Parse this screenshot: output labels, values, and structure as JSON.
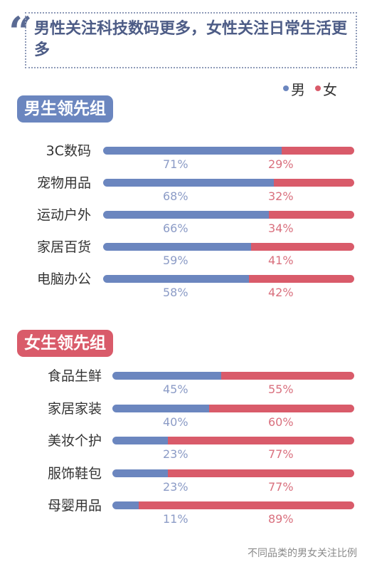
{
  "title": "男性关注科技数码更多，女性关注日常生活更多",
  "legend": [
    {
      "label": "男",
      "color": "#6b86bf"
    },
    {
      "label": "女",
      "color": "#d95b6a"
    }
  ],
  "colors": {
    "male": "#6b86bf",
    "female": "#d95b6a",
    "male_text": "#8b9bc6",
    "female_text": "#d9707e"
  },
  "groups": [
    {
      "label": "男生领先组",
      "color": "#6b86bf"
    },
    {
      "label": "女生领先组",
      "color": "#d95b6a"
    }
  ],
  "chart_data": {
    "type": "bar",
    "stacked": true,
    "orientation": "horizontal",
    "categories": [
      "3C数码",
      "宠物用品",
      "运动户外",
      "家居百货",
      "电脑办公",
      "食品生鲜",
      "家居家装",
      "美妆个护",
      "服饰鞋包",
      "母婴用品"
    ],
    "series": [
      {
        "name": "男",
        "values": [
          71,
          68,
          66,
          59,
          58,
          45,
          40,
          23,
          23,
          11
        ],
        "labels": [
          "71%",
          "68%",
          "66%",
          "59%",
          "58%",
          "45%",
          "40%",
          "23%",
          "23%",
          "11%"
        ]
      },
      {
        "name": "女",
        "values": [
          29,
          32,
          34,
          41,
          42,
          55,
          60,
          77,
          77,
          89
        ],
        "labels": [
          "29%",
          "32%",
          "34%",
          "41%",
          "42%",
          "55%",
          "60%",
          "77%",
          "77%",
          "89%"
        ]
      }
    ],
    "group_of_category": [
      0,
      0,
      0,
      0,
      0,
      1,
      1,
      1,
      1,
      1
    ],
    "ylim": [
      0,
      100
    ]
  },
  "footer": "不同品类的男女关注比例"
}
